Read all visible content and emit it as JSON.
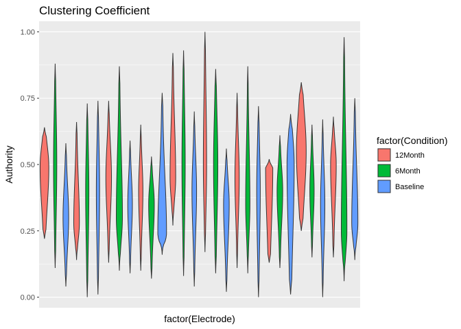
{
  "chart_data": {
    "type": "violin",
    "title": "Clustering Coefficient",
    "xlabel": "factor(Electrode)",
    "ylabel": "Authority",
    "ylim": [
      -0.04,
      1.04
    ],
    "yticks": [
      0.0,
      0.25,
      0.5,
      0.75,
      1.0
    ],
    "ytick_labels": [
      "0.00",
      "0.25",
      "0.50",
      "0.75",
      "1.00"
    ],
    "grid": true,
    "legend": {
      "title": "factor(Condition)",
      "placement": "right",
      "entries": [
        {
          "name": "12Month",
          "color": "#F8766D"
        },
        {
          "name": "6Month",
          "color": "#00BA38"
        },
        {
          "name": "Baseline",
          "color": "#619CFF"
        }
      ]
    },
    "colors": {
      "12Month": "#F8766D",
      "6Month": "#00BA38",
      "Baseline": "#619CFF",
      "panel_background": "#EBEBEB",
      "grid": "#FFFFFF",
      "outline": "#333333"
    },
    "violins": [
      {
        "condition": "12Month",
        "min": 0.22,
        "max": 0.64,
        "mode": 0.49,
        "width": 0.85,
        "shape": "wide"
      },
      {
        "condition": "6Month",
        "min": 0.11,
        "max": 0.88,
        "mode": 0.5,
        "width": 0.32,
        "shape": "thin"
      },
      {
        "condition": "Baseline",
        "min": 0.04,
        "max": 0.58,
        "mode": 0.3,
        "width": 0.55,
        "shape": "mid"
      },
      {
        "condition": "12Month",
        "min": 0.14,
        "max": 0.66,
        "mode": 0.28,
        "width": 0.55,
        "shape": "mid"
      },
      {
        "condition": "6Month",
        "min": 0.0,
        "max": 0.73,
        "mode": 0.4,
        "width": 0.32,
        "shape": "thin"
      },
      {
        "condition": "Baseline",
        "min": 0.01,
        "max": 0.74,
        "mode": 0.4,
        "width": 0.32,
        "shape": "thin"
      },
      {
        "condition": "12Month",
        "min": 0.13,
        "max": 0.74,
        "mode": 0.45,
        "width": 0.55,
        "shape": "mid"
      },
      {
        "condition": "6Month",
        "min": 0.1,
        "max": 0.87,
        "mode": 0.3,
        "width": 0.6,
        "shape": "mid"
      },
      {
        "condition": "Baseline",
        "min": 0.09,
        "max": 0.59,
        "mode": 0.35,
        "width": 0.45,
        "shape": "mid"
      },
      {
        "condition": "12Month",
        "min": 0.1,
        "max": 0.65,
        "mode": 0.4,
        "width": 0.42,
        "shape": "mid"
      },
      {
        "condition": "6Month",
        "min": 0.07,
        "max": 0.53,
        "mode": 0.35,
        "width": 0.55,
        "shape": "mid"
      },
      {
        "condition": "Baseline",
        "min": 0.16,
        "max": 0.77,
        "mode": 0.24,
        "width": 0.85,
        "shape": "bulbous"
      },
      {
        "condition": "12Month",
        "min": 0.27,
        "max": 0.92,
        "mode": 0.45,
        "width": 0.55,
        "shape": "mid"
      },
      {
        "condition": "6Month",
        "min": 0.08,
        "max": 0.93,
        "mode": 0.5,
        "width": 0.32,
        "shape": "thin"
      },
      {
        "condition": "Baseline",
        "min": 0.04,
        "max": 0.7,
        "mode": 0.4,
        "width": 0.45,
        "shape": "mid"
      },
      {
        "condition": "12Month",
        "min": 0.17,
        "max": 1.0,
        "mode": 0.5,
        "width": 0.32,
        "shape": "thin"
      },
      {
        "condition": "6Month",
        "min": 0.09,
        "max": 0.86,
        "mode": 0.5,
        "width": 0.42,
        "shape": "thin"
      },
      {
        "condition": "Baseline",
        "min": 0.02,
        "max": 0.56,
        "mode": 0.35,
        "width": 0.55,
        "shape": "mid"
      },
      {
        "condition": "12Month",
        "min": 0.11,
        "max": 0.77,
        "mode": 0.45,
        "width": 0.42,
        "shape": "mid"
      },
      {
        "condition": "6Month",
        "min": 0.09,
        "max": 0.87,
        "mode": 0.35,
        "width": 0.42,
        "shape": "mid"
      },
      {
        "condition": "Baseline",
        "min": 0.0,
        "max": 0.72,
        "mode": 0.4,
        "width": 0.35,
        "shape": "thin"
      },
      {
        "condition": "12Month",
        "min": 0.13,
        "max": 0.52,
        "mode": 0.5,
        "width": 0.7,
        "shape": "top"
      },
      {
        "condition": "6Month",
        "min": 0.11,
        "max": 0.61,
        "mode": 0.4,
        "width": 0.55,
        "shape": "mid"
      },
      {
        "condition": "Baseline",
        "min": 0.01,
        "max": 0.69,
        "mode": 0.5,
        "width": 0.7,
        "shape": "wide"
      },
      {
        "condition": "12Month",
        "min": 0.25,
        "max": 0.81,
        "mode": 0.55,
        "width": 0.95,
        "shape": "wide"
      },
      {
        "condition": "6Month",
        "min": 0.15,
        "max": 0.65,
        "mode": 0.4,
        "width": 0.42,
        "shape": "mid"
      },
      {
        "condition": "Baseline",
        "min": 0.0,
        "max": 0.67,
        "mode": 0.35,
        "width": 0.42,
        "shape": "mid"
      },
      {
        "condition": "12Month",
        "min": 0.15,
        "max": 0.68,
        "mode": 0.5,
        "width": 0.55,
        "shape": "mid"
      },
      {
        "condition": "6Month",
        "min": 0.06,
        "max": 0.98,
        "mode": 0.25,
        "width": 0.55,
        "shape": "mid"
      },
      {
        "condition": "Baseline",
        "min": 0.14,
        "max": 0.75,
        "mode": 0.28,
        "width": 0.6,
        "shape": "mid"
      }
    ]
  }
}
